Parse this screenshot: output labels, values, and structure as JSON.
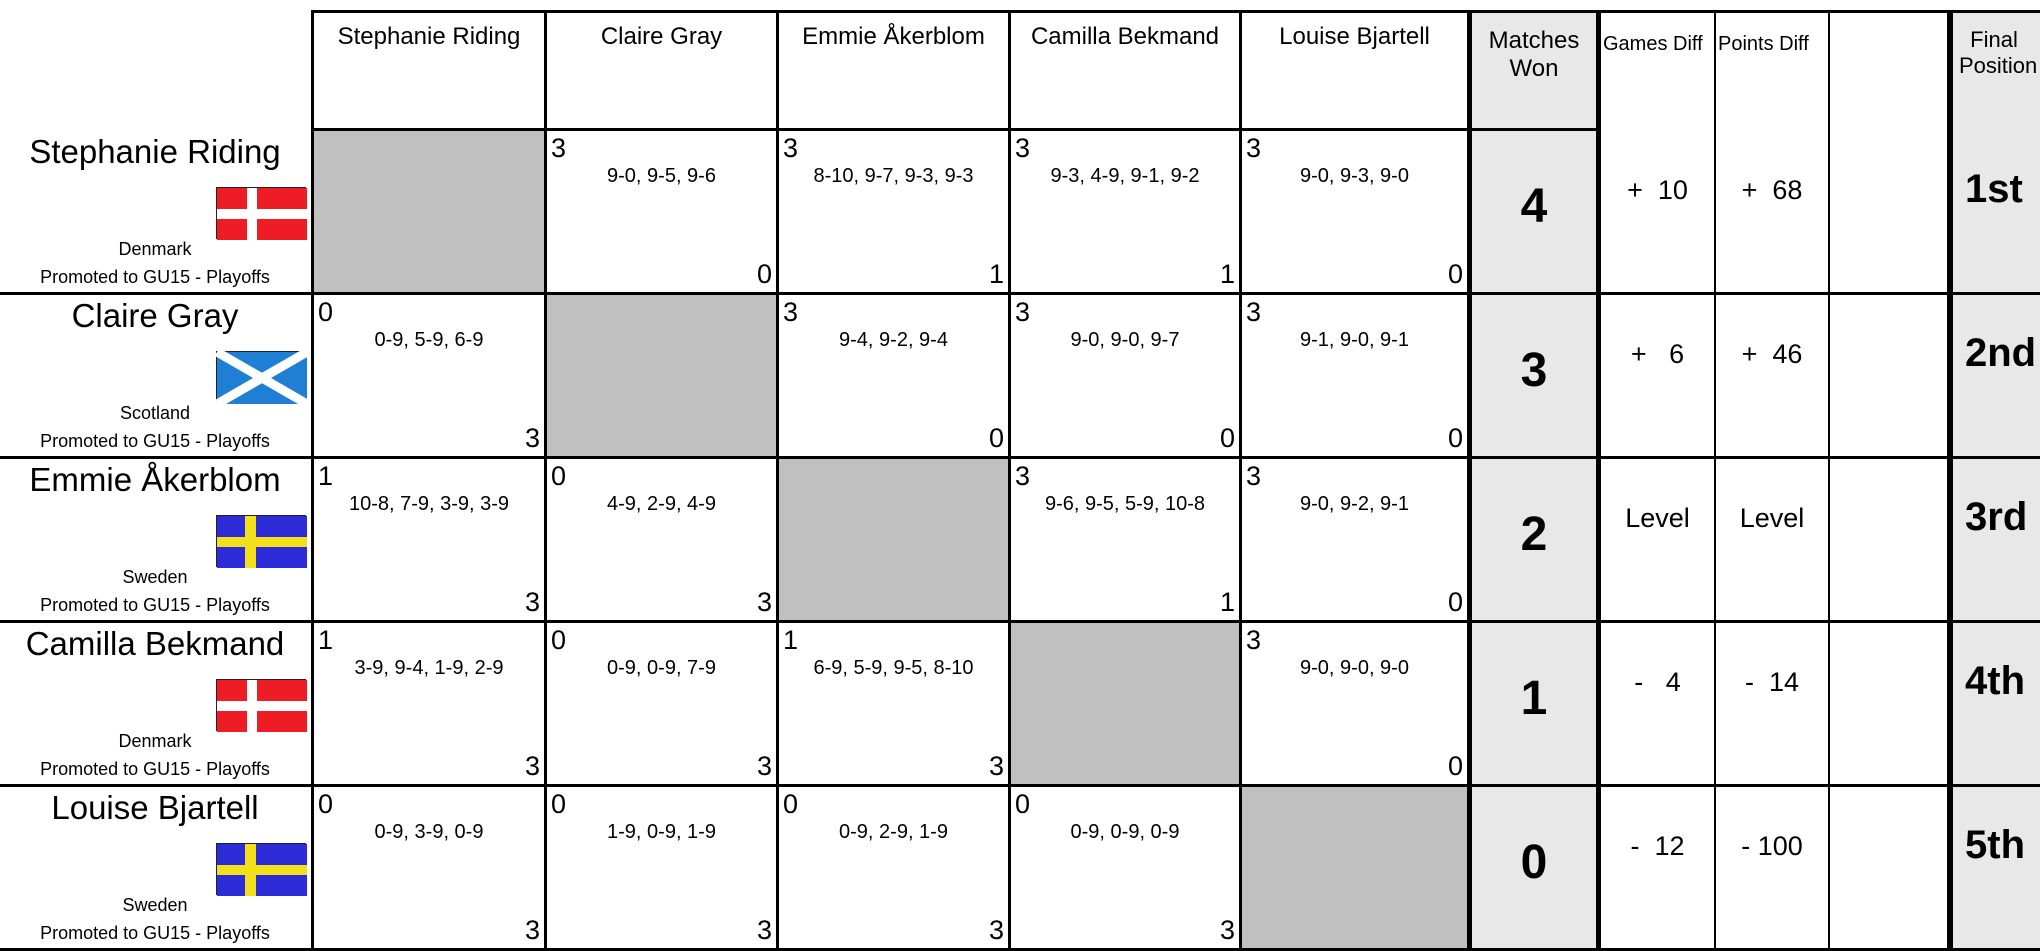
{
  "columns": [
    "Stephanie Riding",
    "Claire Gray",
    "Emmie Åkerblom",
    "Camilla Bekmand",
    "Louise Bjartell"
  ],
  "headers": {
    "matches_won_line1": "Matches",
    "matches_won_line2": "Won",
    "games_diff": "Games Diff",
    "points_diff": "Points Diff",
    "final_position_line1": "Final",
    "final_position_line2": "Position"
  },
  "players": [
    {
      "name": "Stephanie Riding",
      "country": "Denmark",
      "flag_icon": "denmark-flag-icon",
      "promotion": "Promoted to GU15 - Playoffs",
      "matches_won": "4",
      "games_diff": "+  10",
      "points_diff": "+  68",
      "position": "1st",
      "results": [
        null,
        {
          "won": "3",
          "scores": "9-0, 9-5, 9-6",
          "lost": "0"
        },
        {
          "won": "3",
          "scores": "8-10, 9-7, 9-3, 9-3",
          "lost": "1"
        },
        {
          "won": "3",
          "scores": "9-3, 4-9, 9-1, 9-2",
          "lost": "1"
        },
        {
          "won": "3",
          "scores": "9-0, 9-3, 9-0",
          "lost": "0"
        }
      ]
    },
    {
      "name": "Claire Gray",
      "country": "Scotland",
      "flag_icon": "scotland-flag-icon",
      "promotion": "Promoted to GU15 - Playoffs",
      "matches_won": "3",
      "games_diff": "+   6",
      "points_diff": "+  46",
      "position": "2nd",
      "results": [
        {
          "won": "0",
          "scores": "0-9, 5-9, 6-9",
          "lost": "3"
        },
        null,
        {
          "won": "3",
          "scores": "9-4, 9-2, 9-4",
          "lost": "0"
        },
        {
          "won": "3",
          "scores": "9-0, 9-0, 9-7",
          "lost": "0"
        },
        {
          "won": "3",
          "scores": "9-1, 9-0, 9-1",
          "lost": "0"
        }
      ]
    },
    {
      "name": "Emmie Åkerblom",
      "country": "Sweden",
      "flag_icon": "sweden-flag-icon",
      "promotion": "Promoted to GU15 - Playoffs",
      "matches_won": "2",
      "games_diff": "Level",
      "points_diff": "Level",
      "position": "3rd",
      "results": [
        {
          "won": "1",
          "scores": "10-8, 7-9, 3-9, 3-9",
          "lost": "3"
        },
        {
          "won": "0",
          "scores": "4-9, 2-9, 4-9",
          "lost": "3"
        },
        null,
        {
          "won": "3",
          "scores": "9-6, 9-5, 5-9, 10-8",
          "lost": "1"
        },
        {
          "won": "3",
          "scores": "9-0, 9-2, 9-1",
          "lost": "0"
        }
      ]
    },
    {
      "name": "Camilla Bekmand",
      "country": "Denmark",
      "flag_icon": "denmark-flag-icon",
      "promotion": "Promoted to GU15 - Playoffs",
      "matches_won": "1",
      "games_diff": "-   4",
      "points_diff": "-  14",
      "position": "4th",
      "results": [
        {
          "won": "1",
          "scores": "3-9, 9-4, 1-9, 2-9",
          "lost": "3"
        },
        {
          "won": "0",
          "scores": "0-9, 0-9, 7-9",
          "lost": "3"
        },
        {
          "won": "1",
          "scores": "6-9, 5-9, 9-5, 8-10",
          "lost": "3"
        },
        null,
        {
          "won": "3",
          "scores": "9-0, 9-0, 9-0",
          "lost": "0"
        }
      ]
    },
    {
      "name": "Louise Bjartell",
      "country": "Sweden",
      "flag_icon": "sweden-flag-icon",
      "promotion": "Promoted to GU15 - Playoffs",
      "matches_won": "0",
      "games_diff": "-  12",
      "points_diff": "- 100",
      "position": "5th",
      "results": [
        {
          "won": "0",
          "scores": "0-9, 3-9, 0-9",
          "lost": "3"
        },
        {
          "won": "0",
          "scores": "1-9, 0-9, 1-9",
          "lost": "3"
        },
        {
          "won": "0",
          "scores": "0-9, 2-9, 1-9",
          "lost": "3"
        },
        {
          "won": "0",
          "scores": "0-9, 0-9, 0-9",
          "lost": "3"
        },
        null
      ]
    }
  ]
}
